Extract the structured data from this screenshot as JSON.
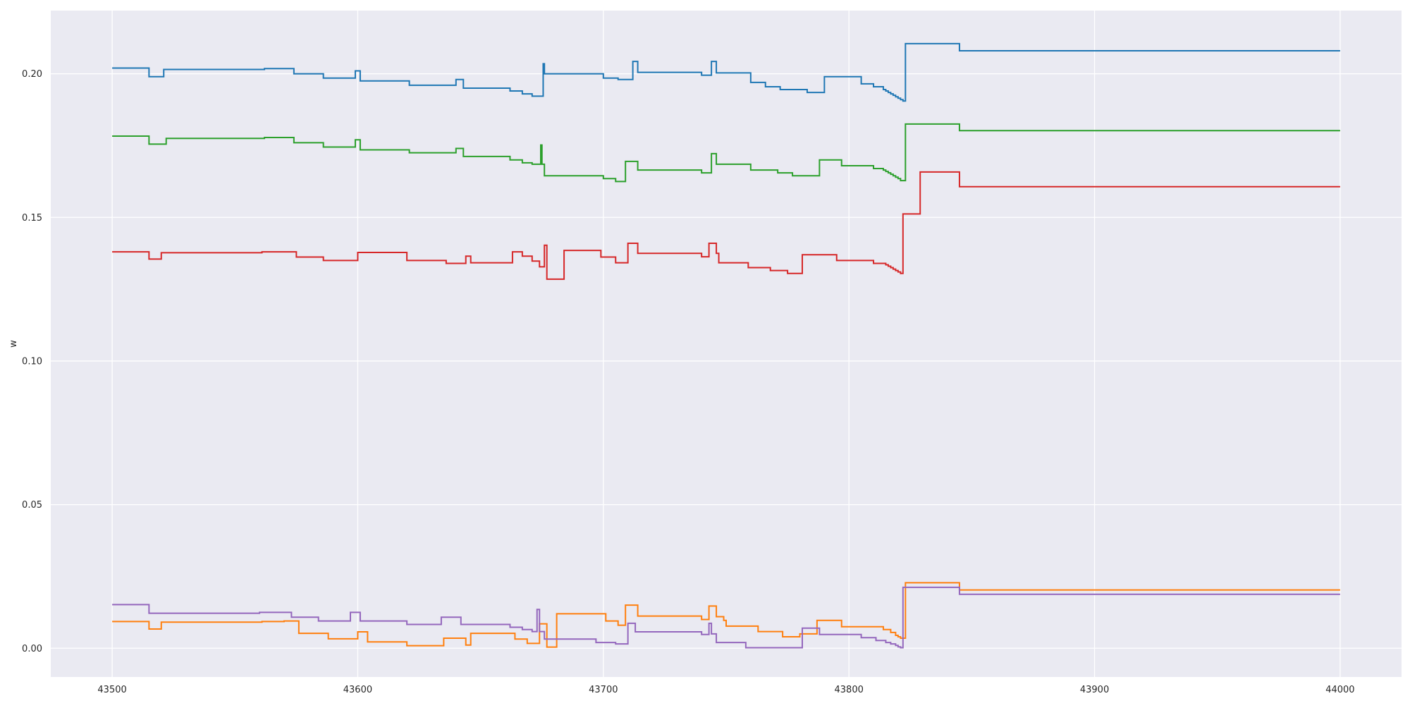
{
  "chart_data": {
    "type": "line",
    "title": "",
    "xlabel": "",
    "ylabel": "w",
    "xlim": [
      43475,
      44025
    ],
    "ylim": [
      -0.01,
      0.222
    ],
    "grid": true,
    "legend": "none",
    "style": {
      "background": "#EAEAF2",
      "grid_color": "#FFFFFF"
    },
    "x_ticks": [
      {
        "value": 43500,
        "label": "43500"
      },
      {
        "value": 43600,
        "label": "43600"
      },
      {
        "value": 43700,
        "label": "43700"
      },
      {
        "value": 43800,
        "label": "43800"
      },
      {
        "value": 43900,
        "label": "43900"
      },
      {
        "value": 44000,
        "label": "44000"
      }
    ],
    "y_ticks": [
      {
        "value": 0.0,
        "label": "0.00"
      },
      {
        "value": 0.05,
        "label": "0.05"
      },
      {
        "value": 0.1,
        "label": "0.10"
      },
      {
        "value": 0.15,
        "label": "0.15"
      },
      {
        "value": 0.2,
        "label": "0.20"
      }
    ],
    "series": [
      {
        "color": "#1f77b4",
        "x": [
          43500,
          43515,
          43521,
          43562,
          43574,
          43586,
          43599,
          43601,
          43621,
          43640,
          43643,
          43662,
          43667,
          43671,
          43675.5,
          43676,
          43700,
          43706,
          43712,
          43714,
          43740,
          43744,
          43746,
          43760,
          43766,
          43772,
          43783,
          43790,
          43805,
          43810,
          43814,
          43815,
          43816,
          43817,
          43818,
          43819,
          43820,
          43821,
          43822,
          43823,
          43845,
          44000
        ],
        "y": [
          0.202,
          0.199,
          0.2015,
          0.2018,
          0.2,
          0.1985,
          0.201,
          0.1975,
          0.196,
          0.198,
          0.195,
          0.194,
          0.193,
          0.1922,
          0.2035,
          0.2,
          0.1985,
          0.198,
          0.2043,
          0.2005,
          0.1995,
          0.2043,
          0.2003,
          0.197,
          0.1955,
          0.1945,
          0.1935,
          0.199,
          0.1965,
          0.1955,
          0.1945,
          0.194,
          0.1935,
          0.193,
          0.1925,
          0.192,
          0.1915,
          0.191,
          0.1905,
          0.2105,
          0.208,
          0.208
        ]
      },
      {
        "color": "#ff7f0e",
        "x": [
          43500,
          43515,
          43520,
          43561,
          43570,
          43576,
          43588,
          43600,
          43604,
          43620,
          43635,
          43644,
          43646,
          43664,
          43669,
          43674,
          43677,
          43681,
          43688,
          43701,
          43706,
          43709,
          43714,
          43740,
          43743,
          43746,
          43749,
          43750,
          43763,
          43773,
          43780,
          43787,
          43797,
          43814,
          43817,
          43819,
          43820,
          43821,
          43823,
          43845,
          44000
        ],
        "y": [
          0.0093,
          0.0067,
          0.0091,
          0.0093,
          0.0095,
          0.0052,
          0.0033,
          0.0057,
          0.0022,
          0.0009,
          0.0035,
          0.0011,
          0.0052,
          0.0032,
          0.0017,
          0.0085,
          0.0004,
          0.012,
          0.012,
          0.0095,
          0.008,
          0.015,
          0.0112,
          0.01,
          0.0147,
          0.011,
          0.0097,
          0.0077,
          0.0058,
          0.004,
          0.005,
          0.0097,
          0.0075,
          0.0065,
          0.0055,
          0.0045,
          0.004,
          0.0035,
          0.0228,
          0.0203,
          0.0203
        ]
      },
      {
        "color": "#2ca02c",
        "x": [
          43500,
          43515,
          43522,
          43562,
          43574,
          43586,
          43599,
          43601,
          43621,
          43640,
          43643,
          43662,
          43667,
          43671,
          43674.5,
          43675,
          43676,
          43700,
          43705,
          43709,
          43714,
          43740,
          43744,
          43746,
          43760,
          43771,
          43777,
          43788,
          43797,
          43810,
          43814,
          43815,
          43816,
          43817,
          43818,
          43819,
          43820,
          43821,
          43823,
          43845,
          44000
        ],
        "y": [
          0.1783,
          0.1755,
          0.1775,
          0.1778,
          0.176,
          0.1745,
          0.177,
          0.1735,
          0.1725,
          0.174,
          0.1712,
          0.17,
          0.169,
          0.1685,
          0.1752,
          0.1685,
          0.1645,
          0.1635,
          0.1625,
          0.1695,
          0.1665,
          0.1655,
          0.1722,
          0.1685,
          0.1665,
          0.1655,
          0.1645,
          0.17,
          0.168,
          0.167,
          0.1665,
          0.166,
          0.1655,
          0.165,
          0.1645,
          0.164,
          0.1635,
          0.1628,
          0.1825,
          0.1802,
          0.1802
        ]
      },
      {
        "color": "#d62728",
        "x": [
          43500,
          43515,
          43520,
          43561,
          43575,
          43586,
          43600,
          43620,
          43636,
          43644,
          43646,
          43663,
          43667,
          43671,
          43674,
          43676,
          43677,
          43684,
          43699,
          43705,
          43710,
          43714,
          43740,
          43743,
          43746,
          43747,
          43759,
          43768,
          43775,
          43781,
          43795,
          43810,
          43815,
          43816,
          43817,
          43818,
          43819,
          43820,
          43821,
          43822,
          43829,
          43845,
          44000
        ],
        "y": [
          0.138,
          0.1355,
          0.1377,
          0.138,
          0.1362,
          0.135,
          0.1378,
          0.135,
          0.134,
          0.1365,
          0.1342,
          0.138,
          0.1365,
          0.1348,
          0.1328,
          0.1403,
          0.1285,
          0.1385,
          0.1362,
          0.1342,
          0.141,
          0.1375,
          0.1363,
          0.141,
          0.1375,
          0.1342,
          0.1325,
          0.1315,
          0.1305,
          0.137,
          0.135,
          0.134,
          0.1335,
          0.133,
          0.1325,
          0.132,
          0.1315,
          0.131,
          0.1305,
          0.1512,
          0.1658,
          0.1607,
          0.1607
        ]
      },
      {
        "color": "#9467bd",
        "x": [
          43500,
          43515,
          43560,
          43573,
          43584,
          43597,
          43601,
          43620,
          43634,
          43642,
          43645,
          43662,
          43667,
          43671,
          43673,
          43674,
          43676,
          43697,
          43705,
          43710,
          43713,
          43740,
          43743,
          43744,
          43746,
          43758,
          43767,
          43781,
          43788,
          43805,
          43811,
          43815,
          43817,
          43819,
          43820,
          43821,
          43822,
          43845,
          44000
        ],
        "y": [
          0.0152,
          0.0122,
          0.0125,
          0.0108,
          0.0095,
          0.0125,
          0.0095,
          0.0083,
          0.0108,
          0.0083,
          0.0083,
          0.0073,
          0.0065,
          0.0058,
          0.0135,
          0.0058,
          0.0032,
          0.002,
          0.0015,
          0.0087,
          0.0057,
          0.0048,
          0.0087,
          0.005,
          0.002,
          0.0002,
          0.0002,
          0.007,
          0.0048,
          0.0037,
          0.0027,
          0.002,
          0.0015,
          0.001,
          0.0005,
          0.0002,
          0.0212,
          0.0188,
          0.0188
        ]
      }
    ]
  }
}
